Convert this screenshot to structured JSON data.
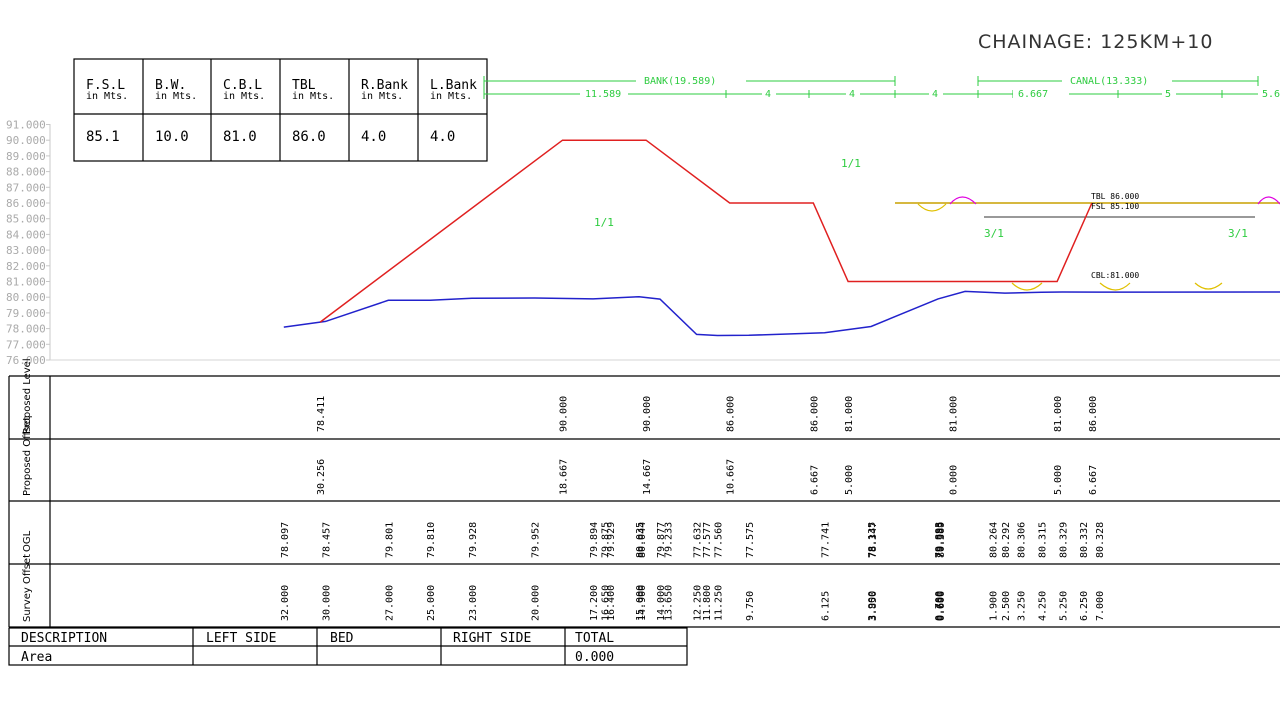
{
  "chainage": "CHAINAGE: 125KM+10",
  "params": {
    "headers": [
      {
        "l1": "F.S.L",
        "l2": "in Mts."
      },
      {
        "l1": "B.W.",
        "l2": "in Mts."
      },
      {
        "l1": "C.B.L",
        "l2": "in Mts."
      },
      {
        "l1": "TBL",
        "l2": "in Mts."
      },
      {
        "l1": "R.Bank",
        "l2": "in Mts."
      },
      {
        "l1": "L.Bank",
        "l2": "in Mts."
      }
    ],
    "values": [
      "85.1",
      "10.0",
      "81.0",
      "86.0",
      "4.0",
      "4.0"
    ]
  },
  "dimensions": {
    "bank_label": "BANK(19.589)",
    "canal_label": "CANAL(13.333)",
    "segments": [
      "11.589",
      "4",
      "4",
      "4",
      "6.667",
      "5",
      "5.6"
    ]
  },
  "chart_data": {
    "type": "line",
    "ylim": [
      76.0,
      91.0
    ],
    "y_ticks": [
      "91.000",
      "90.000",
      "89.000",
      "88.000",
      "87.000",
      "86.000",
      "85.000",
      "84.000",
      "83.000",
      "82.000",
      "81.000",
      "80.000",
      "79.000",
      "78.000",
      "77.000",
      "76.000"
    ],
    "series": [
      {
        "values": [
          {
            "x": -30.256,
            "y": 78.411
          },
          {
            "x": -18.667,
            "y": 90.0
          },
          {
            "x": -14.667,
            "y": 90.0
          },
          {
            "x": -10.667,
            "y": 86.0
          },
          {
            "x": -6.667,
            "y": 86.0
          },
          {
            "x": -5.0,
            "y": 81.0
          },
          {
            "x": 0.0,
            "y": 81.0
          },
          {
            "x": 5.0,
            "y": 81.0
          },
          {
            "x": 6.667,
            "y": 86.0
          }
        ]
      },
      {
        "values": [
          {
            "x": -32.0,
            "y": 78.097
          },
          {
            "x": -30.0,
            "y": 78.457
          },
          {
            "x": -27.0,
            "y": 79.801
          },
          {
            "x": -25.0,
            "y": 79.81
          },
          {
            "x": -23.0,
            "y": 79.928
          },
          {
            "x": -20.0,
            "y": 79.952
          },
          {
            "x": -17.2,
            "y": 79.894
          },
          {
            "x": -15.0,
            "y": 80.035
          },
          {
            "x": -14.0,
            "y": 79.877
          },
          {
            "x": -12.25,
            "y": 77.632
          },
          {
            "x": -11.25,
            "y": 77.56
          },
          {
            "x": -9.75,
            "y": 77.575
          },
          {
            "x": -6.125,
            "y": 77.741
          },
          {
            "x": -3.9,
            "y": 78.135
          },
          {
            "x": -0.7,
            "y": 79.893
          },
          {
            "x": 0.6,
            "y": 80.369
          },
          {
            "x": 2.5,
            "y": 80.264
          },
          {
            "x": 4.25,
            "y": 80.315
          },
          {
            "x": 5.25,
            "y": 80.329
          },
          {
            "x": 7.0,
            "y": 80.328
          }
        ]
      }
    ],
    "labels": {
      "slope_left": "1/1",
      "slope_right": "1/1",
      "slope_canal_left": "3/1",
      "slope_canal_right": "3/1",
      "tbl": "TBL 86.000",
      "fsl": "FSL 85.100",
      "cbl": "CBL:81.000"
    }
  },
  "bands": {
    "row_labels": [
      "Proposed Level",
      "Proposed Offset",
      "OGL",
      "Survey Offset"
    ],
    "proposed_level": [
      "78.411",
      "90.000",
      "90.000",
      "86.000",
      "86.000",
      "81.000",
      "81.000",
      "81.000",
      "86.000"
    ],
    "proposed_offset": [
      "30.256",
      "18.667",
      "14.667",
      "10.667",
      "6.667",
      "5.000",
      "0.000",
      "5.000",
      "6.667"
    ],
    "ogl": [
      "78.097",
      "78.457",
      "79.801",
      "79.810",
      "79.928",
      "79.952",
      "79.894",
      "79.875",
      "79.929",
      "80.035",
      "80.044",
      "79.877",
      "79.233",
      "77.632",
      "77.577",
      "77.560",
      "77.575",
      "77.741",
      "78.135",
      "78.347",
      "79.893",
      "79.955",
      "80.369",
      "80.264",
      "80.292",
      "80.306",
      "80.315",
      "80.329",
      "80.332",
      "80.328"
    ],
    "survey_offset": [
      "32.000",
      "30.000",
      "27.000",
      "25.000",
      "23.000",
      "20.000",
      "17.200",
      "16.650",
      "16.400",
      "15.000",
      "14.900",
      "14.000",
      "13.650",
      "12.250",
      "11.800",
      "11.250",
      "9.750",
      "6.125",
      "3.900",
      "3.850",
      "0.700",
      "0.650",
      "0.600",
      "1.900",
      "2.500",
      "3.250",
      "4.250",
      "5.250",
      "6.250",
      "7.000"
    ]
  },
  "area_table": {
    "headers": [
      "DESCRIPTION",
      "LEFT SIDE",
      "BED",
      "RIGHT SIDE",
      "TOTAL"
    ],
    "row": [
      "Area",
      "",
      "",
      "",
      "0.000"
    ]
  }
}
